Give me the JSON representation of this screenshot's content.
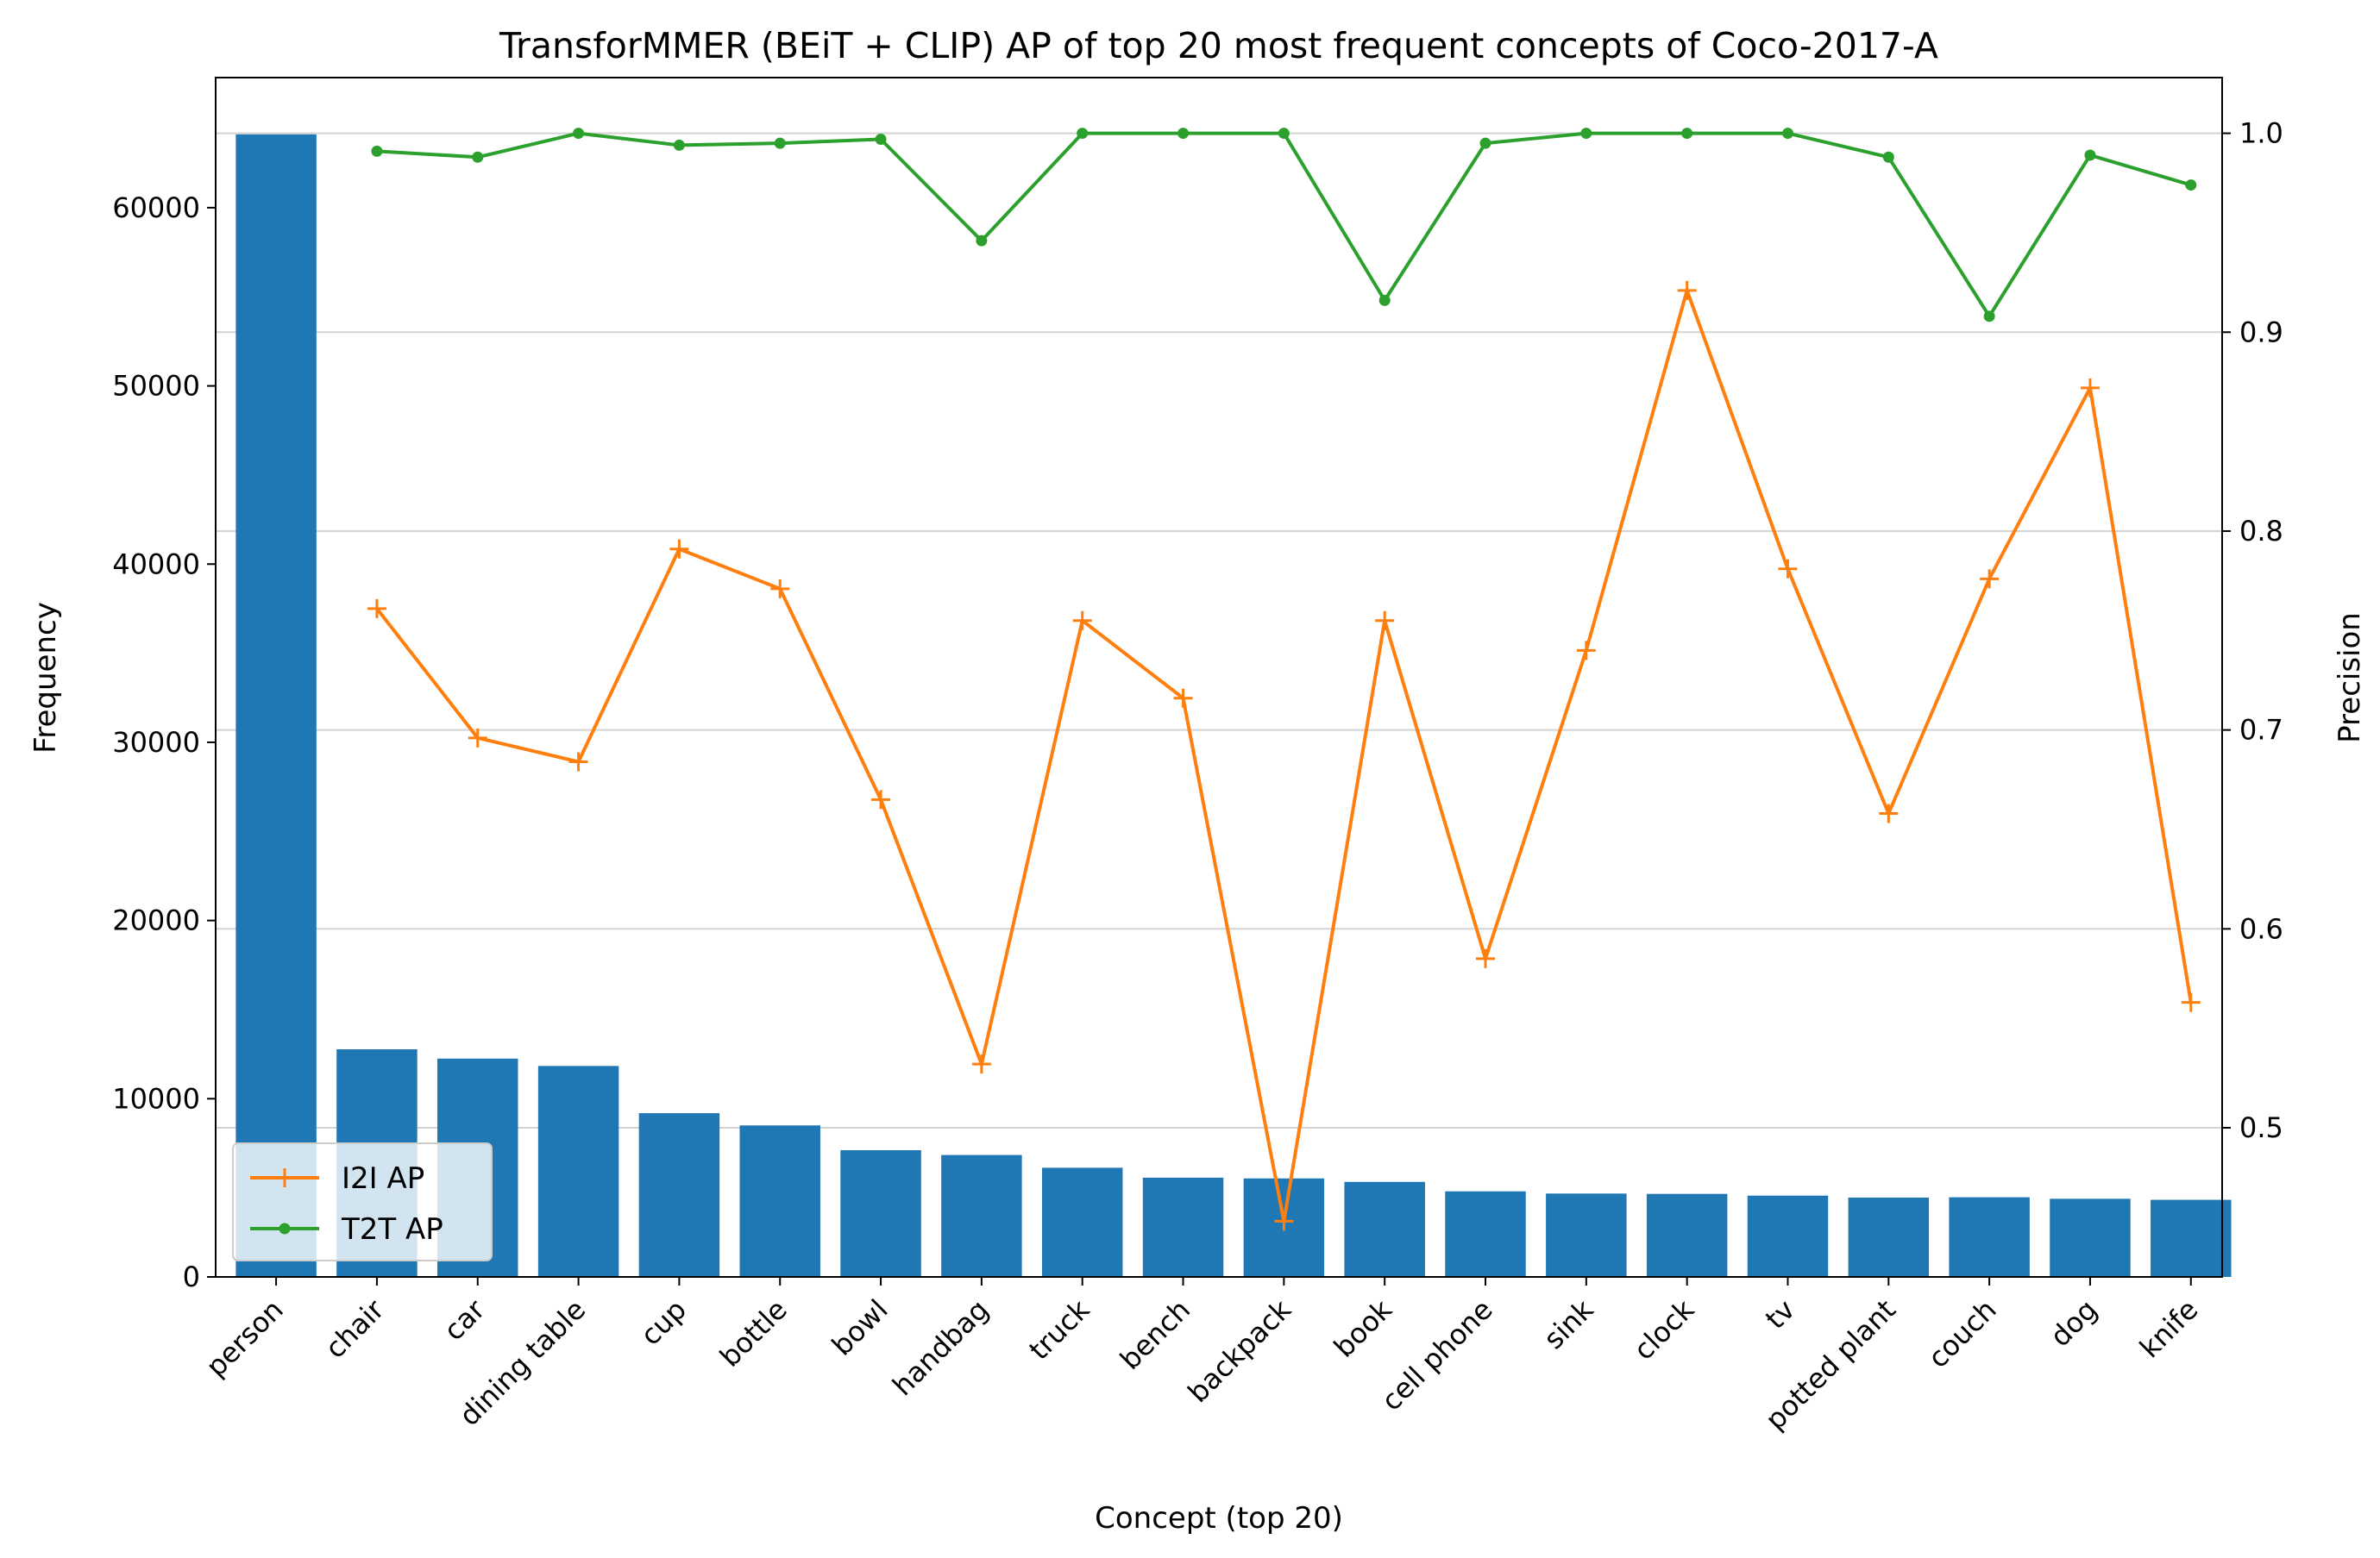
{
  "chart_data": {
    "type": "bar",
    "title": "TransforMMER (BEiT + CLIP) AP of top 20 most frequent concepts of Coco-2017-A",
    "xlabel": "Concept (top 20)",
    "ylabel": "Frequency",
    "ylabel_right": "Precision",
    "categories": [
      "person",
      "chair",
      "car",
      "dining table",
      "cup",
      "bottle",
      "bowl",
      "handbag",
      "truck",
      "bench",
      "backpack",
      "book",
      "cell phone",
      "sink",
      "clock",
      "tv",
      "potted plant",
      "couch",
      "dog",
      "knife"
    ],
    "bars": {
      "color": "#1f77b4",
      "values": [
        64115,
        12774,
        12251,
        11837,
        9189,
        8501,
        7111,
        6841,
        6127,
        5570,
        5528,
        5332,
        4803,
        4678,
        4659,
        4561,
        4452,
        4470,
        4385,
        4326
      ]
    },
    "ylim": [
      0,
      67300
    ],
    "yticks": [
      0,
      10000,
      20000,
      30000,
      40000,
      50000,
      60000
    ],
    "ytick_labels": [
      "0",
      "10000",
      "20000",
      "30000",
      "40000",
      "50000",
      "60000"
    ],
    "ylim_right": [
      0.425,
      1.028
    ],
    "yticks_right": [
      0.5,
      0.6,
      0.7,
      0.8,
      0.9,
      1.0
    ],
    "ytick_labels_right": [
      "0.5",
      "0.6",
      "0.7",
      "0.8",
      "0.9",
      "1.0"
    ],
    "grid": "horizontal, right axis",
    "legend_position": "lower-left",
    "series": [
      {
        "name": "I2I AP",
        "color": "#ff7f0e",
        "marker": "plus",
        "axis": "right",
        "values": [
          null,
          0.761,
          0.696,
          0.684,
          0.791,
          0.771,
          0.665,
          0.532,
          0.755,
          0.716,
          0.453,
          0.755,
          0.585,
          0.74,
          0.921,
          0.781,
          0.658,
          0.776,
          0.872,
          0.563
        ]
      },
      {
        "name": "T2T AP",
        "color": "#2ca02c",
        "marker": "dot",
        "axis": "right",
        "values": [
          null,
          0.991,
          0.988,
          1.0,
          0.994,
          0.995,
          0.997,
          0.946,
          1.0,
          1.0,
          1.0,
          0.916,
          0.995,
          1.0,
          1.0,
          1.0,
          0.988,
          0.908,
          0.989,
          0.974
        ]
      }
    ]
  }
}
